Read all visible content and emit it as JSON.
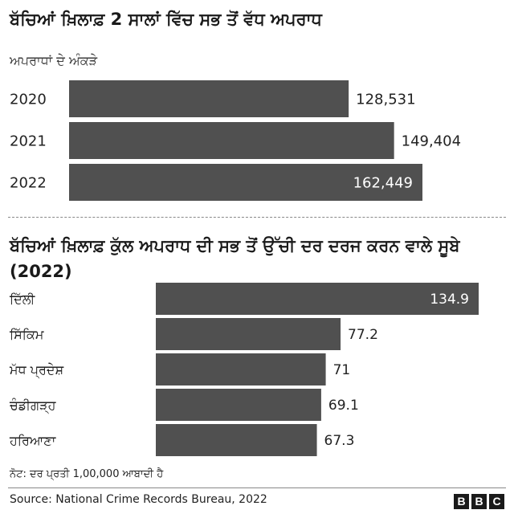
{
  "colors": {
    "bar": "#505050",
    "label_outside": "#222222",
    "label_inside": "#ffffff",
    "background": "#ffffff"
  },
  "chart_data": [
    {
      "type": "bar",
      "orientation": "horizontal",
      "title": "ਬੱਚਿਆਂ ਖ਼ਿਲਾਫ਼ 2 ਸਾਲਾਂ ਵਿੱਚ ਸਭ ਤੋਂ ਵੱਧ ਅਪਰਾਧ",
      "subtitle": "ਅਪਰਾਧਾਂ ਦੇ ਅੰਕੜੇ",
      "categories": [
        "2020",
        "2021",
        "2022"
      ],
      "values": [
        128531,
        149404,
        162449
      ],
      "value_labels": [
        "128,531",
        "149,404",
        "162,449"
      ],
      "label_inside": [
        false,
        false,
        true
      ]
    },
    {
      "type": "bar",
      "orientation": "horizontal",
      "title": "ਬੱਚਿਆਂ ਖ਼ਿਲਾਫ਼ ਕੁੱਲ ਅਪਰਾਧ ਦੀ ਸਭ ਤੋਂ ਉੱਚੀ ਦਰ ਦਰਜ ਕਰਨ ਵਾਲੇ ਸੂਬੇ (2022)",
      "categories": [
        "ਦਿੱਲੀ",
        "ਸਿੱਕਿਮ",
        "ਮੱਧ ਪ੍ਰਦੇਸ਼",
        "ਚੰਡੀਗੜ੍ਹ",
        "ਹਰਿਆਣਾ"
      ],
      "values": [
        134.9,
        77.2,
        71,
        69.1,
        67.3
      ],
      "value_labels": [
        "134.9",
        "77.2",
        "71",
        "69.1",
        "67.3"
      ],
      "label_inside": [
        true,
        false,
        false,
        false,
        false
      ]
    }
  ],
  "note": "ਨੋਟ: ਦਰ ਪ੍ਰਤੀ 1,00,000 ਆਬਾਦੀ ਹੈ",
  "source": "Source: National Crime Records Bureau, 2022",
  "logo": {
    "letters": [
      "B",
      "B",
      "C"
    ]
  }
}
